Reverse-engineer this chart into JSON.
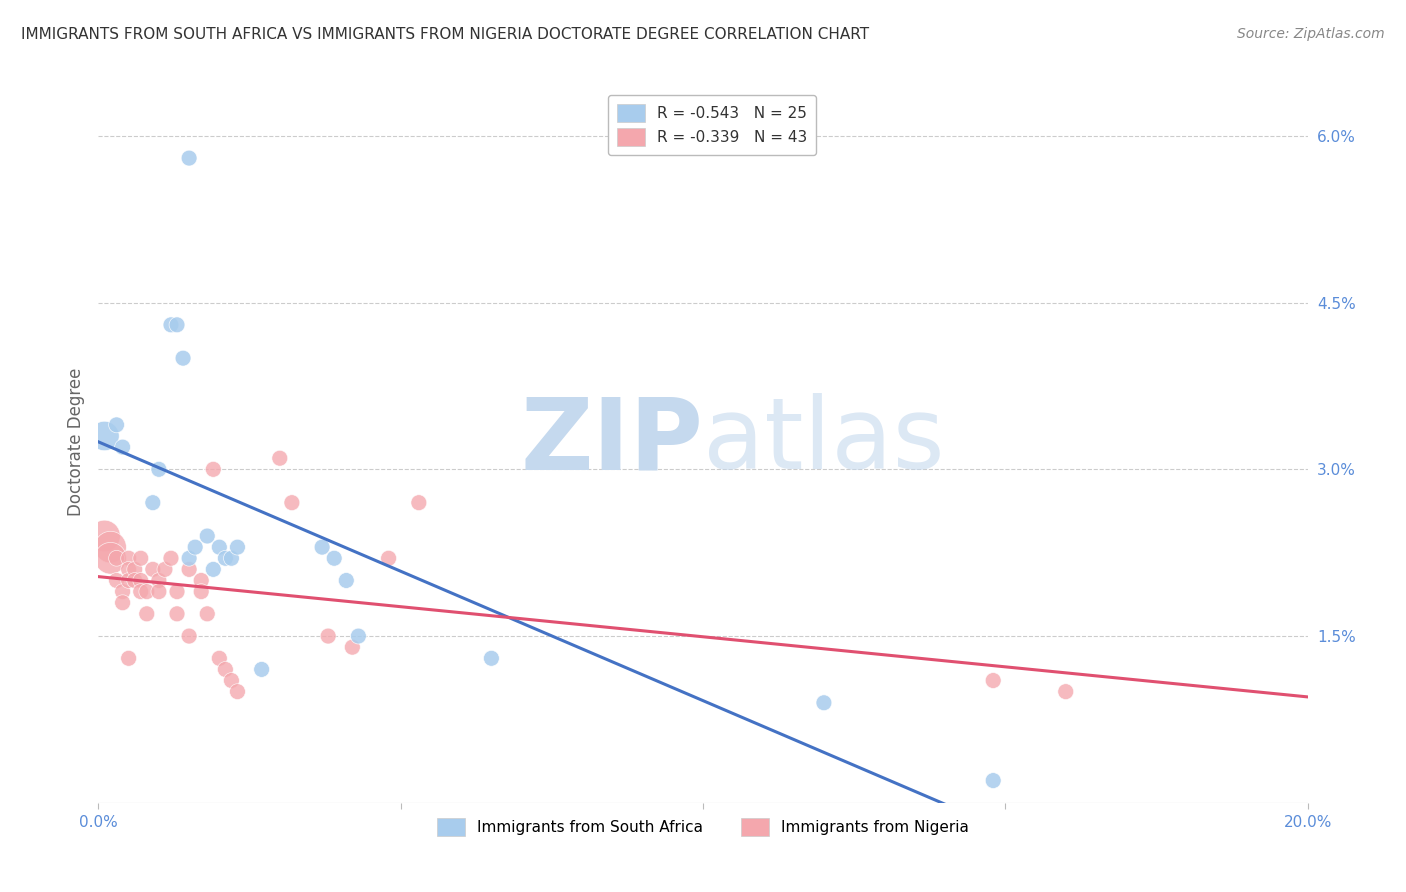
{
  "title": "IMMIGRANTS FROM SOUTH AFRICA VS IMMIGRANTS FROM NIGERIA DOCTORATE DEGREE CORRELATION CHART",
  "source": "Source: ZipAtlas.com",
  "ylabel": "Doctorate Degree",
  "xlim": [
    0.0,
    0.2
  ],
  "ylim": [
    0.0,
    0.065
  ],
  "xtick_positions": [
    0.0,
    0.05,
    0.1,
    0.15,
    0.2
  ],
  "xticklabels_shown": [
    "0.0%",
    "20.0%"
  ],
  "xticklabels_shown_pos": [
    0.0,
    0.2
  ],
  "yticks_right": [
    0.06,
    0.045,
    0.03,
    0.015
  ],
  "yticklabels_right": [
    "6.0%",
    "4.5%",
    "3.0%",
    "1.5%"
  ],
  "legend_entries": [
    {
      "label": "R = -0.543   N = 25",
      "color": "#A8CCED"
    },
    {
      "label": "R = -0.339   N = 43",
      "color": "#F4A7AD"
    }
  ],
  "legend_bottom": [
    {
      "label": "Immigrants from South Africa",
      "color": "#A8CCED"
    },
    {
      "label": "Immigrants from Nigeria",
      "color": "#F4A7AD"
    }
  ],
  "sa_color": "#A8CCED",
  "sa_line_color": "#4472C4",
  "ng_color": "#F4A7AD",
  "ng_line_color": "#E05070",
  "grid_color": "#CCCCCC",
  "title_color": "#333333",
  "right_tick_color": "#5B8DD9",
  "watermark_color": "#D8E8F5",
  "background_color": "#FFFFFF",
  "south_africa_points": [
    [
      0.001,
      0.033
    ],
    [
      0.003,
      0.034
    ],
    [
      0.004,
      0.032
    ],
    [
      0.009,
      0.027
    ],
    [
      0.01,
      0.03
    ],
    [
      0.012,
      0.043
    ],
    [
      0.013,
      0.043
    ],
    [
      0.014,
      0.04
    ],
    [
      0.015,
      0.058
    ],
    [
      0.015,
      0.022
    ],
    [
      0.016,
      0.023
    ],
    [
      0.018,
      0.024
    ],
    [
      0.019,
      0.021
    ],
    [
      0.02,
      0.023
    ],
    [
      0.021,
      0.022
    ],
    [
      0.022,
      0.022
    ],
    [
      0.023,
      0.023
    ],
    [
      0.027,
      0.012
    ],
    [
      0.037,
      0.023
    ],
    [
      0.039,
      0.022
    ],
    [
      0.041,
      0.02
    ],
    [
      0.043,
      0.015
    ],
    [
      0.065,
      0.013
    ],
    [
      0.12,
      0.009
    ],
    [
      0.148,
      0.002
    ]
  ],
  "nigeria_points": [
    [
      0.001,
      0.024
    ],
    [
      0.002,
      0.023
    ],
    [
      0.002,
      0.022
    ],
    [
      0.003,
      0.022
    ],
    [
      0.003,
      0.02
    ],
    [
      0.004,
      0.019
    ],
    [
      0.004,
      0.018
    ],
    [
      0.005,
      0.022
    ],
    [
      0.005,
      0.021
    ],
    [
      0.005,
      0.02
    ],
    [
      0.005,
      0.013
    ],
    [
      0.006,
      0.021
    ],
    [
      0.006,
      0.02
    ],
    [
      0.007,
      0.022
    ],
    [
      0.007,
      0.02
    ],
    [
      0.007,
      0.019
    ],
    [
      0.008,
      0.019
    ],
    [
      0.008,
      0.017
    ],
    [
      0.009,
      0.021
    ],
    [
      0.01,
      0.02
    ],
    [
      0.01,
      0.019
    ],
    [
      0.011,
      0.021
    ],
    [
      0.012,
      0.022
    ],
    [
      0.013,
      0.019
    ],
    [
      0.013,
      0.017
    ],
    [
      0.015,
      0.021
    ],
    [
      0.015,
      0.015
    ],
    [
      0.017,
      0.02
    ],
    [
      0.017,
      0.019
    ],
    [
      0.018,
      0.017
    ],
    [
      0.019,
      0.03
    ],
    [
      0.02,
      0.013
    ],
    [
      0.021,
      0.012
    ],
    [
      0.022,
      0.011
    ],
    [
      0.023,
      0.01
    ],
    [
      0.03,
      0.031
    ],
    [
      0.032,
      0.027
    ],
    [
      0.038,
      0.015
    ],
    [
      0.042,
      0.014
    ],
    [
      0.048,
      0.022
    ],
    [
      0.053,
      0.027
    ],
    [
      0.148,
      0.011
    ],
    [
      0.16,
      0.01
    ]
  ],
  "sa_large_indices": [
    0
  ],
  "ng_large_indices": [
    0,
    1,
    2
  ]
}
